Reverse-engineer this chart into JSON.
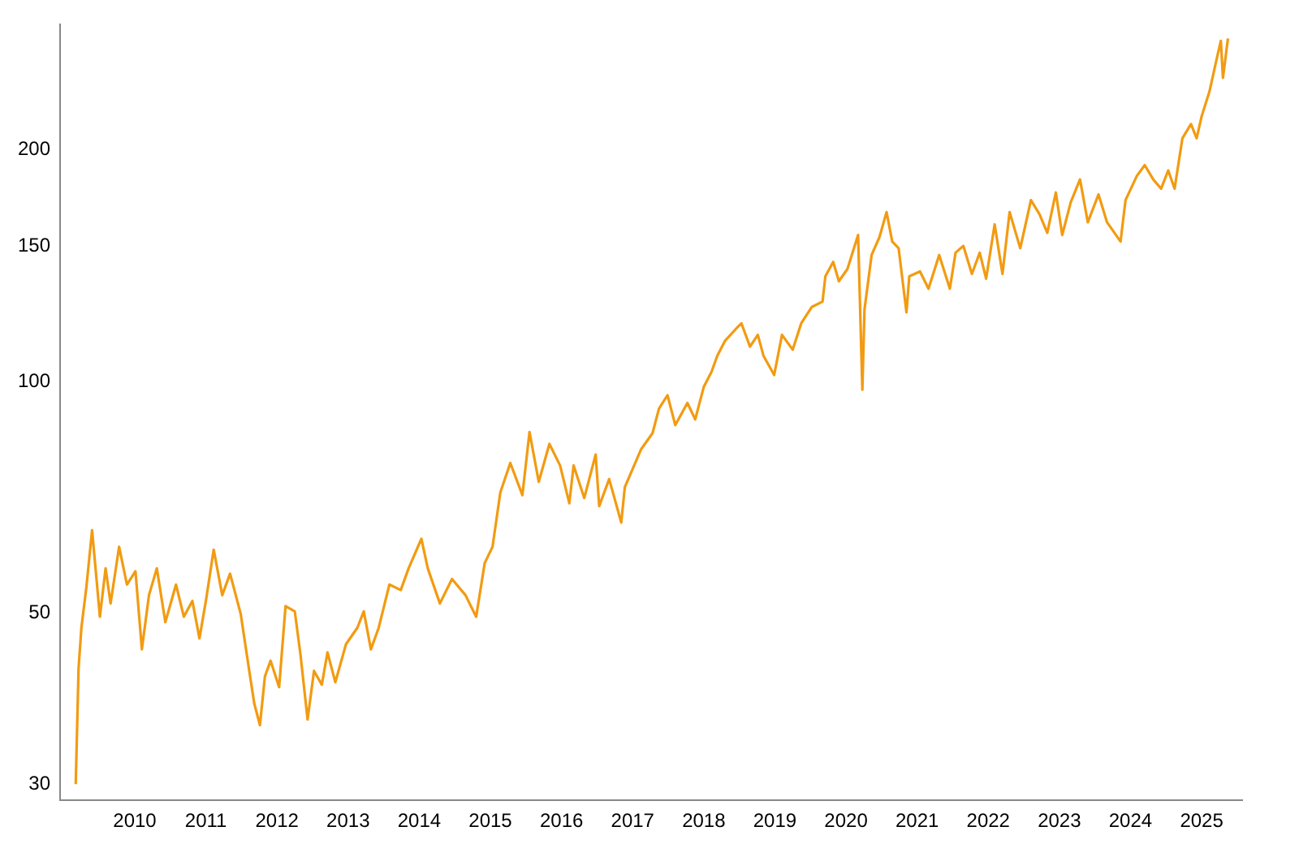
{
  "chart_data": {
    "type": "line",
    "log": "y",
    "marker": "none",
    "xlim": [
      2008.95,
      2025.57
    ],
    "xticks": [
      2010,
      2011,
      2012,
      2013,
      2014,
      2015,
      2016,
      2017,
      2018,
      2019,
      2020,
      2021,
      2022,
      2023,
      2024,
      2025
    ],
    "ylim": [
      28.6,
      291
    ],
    "yticks": [
      30,
      50,
      100,
      150,
      200
    ],
    "series": [
      {
        "color": "#f29b11",
        "x": [
          2009.17,
          2009.21,
          2009.25,
          2009.32,
          2009.4,
          2009.51,
          2009.59,
          2009.66,
          2009.78,
          2009.89,
          2010.01,
          2010.1,
          2010.2,
          2010.31,
          2010.43,
          2010.58,
          2010.69,
          2010.81,
          2010.91,
          2011.0,
          2011.11,
          2011.23,
          2011.34,
          2011.49,
          2011.61,
          2011.68,
          2011.76,
          2011.83,
          2011.91,
          2012.03,
          2012.12,
          2012.25,
          2012.33,
          2012.43,
          2012.52,
          2012.63,
          2012.71,
          2012.82,
          2012.97,
          2013.13,
          2013.22,
          2013.32,
          2013.43,
          2013.58,
          2013.74,
          2013.85,
          2014.03,
          2014.12,
          2014.29,
          2014.46,
          2014.65,
          2014.8,
          2014.92,
          2015.03,
          2015.14,
          2015.28,
          2015.45,
          2015.55,
          2015.68,
          2015.83,
          2015.98,
          2016.11,
          2016.17,
          2016.32,
          2016.48,
          2016.53,
          2016.67,
          2016.84,
          2016.89,
          2017.12,
          2017.28,
          2017.37,
          2017.49,
          2017.6,
          2017.77,
          2017.88,
          2018.0,
          2018.11,
          2018.19,
          2018.3,
          2018.45,
          2018.53,
          2018.65,
          2018.76,
          2018.84,
          2018.99,
          2019.1,
          2019.25,
          2019.37,
          2019.52,
          2019.67,
          2019.71,
          2019.82,
          2019.9,
          2020.02,
          2020.17,
          2020.23,
          2020.26,
          2020.36,
          2020.47,
          2020.57,
          2020.65,
          2020.74,
          2020.85,
          2020.89,
          2021.04,
          2021.16,
          2021.31,
          2021.46,
          2021.54,
          2021.65,
          2021.77,
          2021.88,
          2021.97,
          2022.09,
          2022.2,
          2022.3,
          2022.45,
          2022.6,
          2022.72,
          2022.83,
          2022.95,
          2023.04,
          2023.16,
          2023.29,
          2023.4,
          2023.55,
          2023.67,
          2023.86,
          2023.93,
          2024.09,
          2024.2,
          2024.32,
          2024.43,
          2024.53,
          2024.62,
          2024.73,
          2024.85,
          2024.93,
          2025.0,
          2025.11,
          2025.21,
          2025.27,
          2025.3,
          2025.37
        ],
        "values": [
          30,
          42.4,
          47.9,
          54.1,
          64.1,
          49.5,
          57.2,
          51.5,
          61.0,
          54.5,
          56.7,
          44.9,
          52.8,
          57.2,
          48.7,
          54.5,
          49.5,
          51.9,
          46.4,
          51.9,
          60.5,
          52.8,
          56.3,
          49.9,
          42.1,
          38.2,
          35.8,
          41.4,
          43.4,
          40.1,
          51.1,
          50.3,
          44.2,
          36.4,
          42.1,
          40.4,
          44.5,
          40.7,
          45.6,
          47.9,
          50.3,
          44.9,
          47.9,
          54.5,
          53.6,
          57.2,
          62.5,
          57.2,
          51.5,
          55.4,
          52.8,
          49.5,
          58.1,
          61.0,
          71.8,
          78.4,
          71.2,
          86.0,
          74.1,
          83.0,
          77.8,
          69.5,
          77.8,
          70.6,
          80.4,
          68.9,
          74.7,
          65.6,
          72.9,
          81.7,
          85.7,
          92.2,
          96.0,
          87.8,
          93.8,
          89.3,
          98.4,
          103,
          108,
          113,
          117,
          119,
          111,
          115,
          108,
          102,
          115,
          110,
          119,
          125,
          127,
          137,
          143,
          135,
          140,
          155,
          97.6,
          124,
          146,
          154,
          166,
          152,
          149,
          123,
          137,
          139,
          132,
          146,
          132,
          147,
          150,
          138,
          147,
          136,
          160,
          138,
          166,
          149,
          172,
          165,
          156,
          176,
          155,
          171,
          183,
          161,
          175,
          161,
          152,
          172,
          185,
          191,
          183,
          178,
          188,
          178,
          207,
          216,
          207,
          221,
          238,
          262,
          277,
          248,
          279
        ]
      }
    ]
  }
}
